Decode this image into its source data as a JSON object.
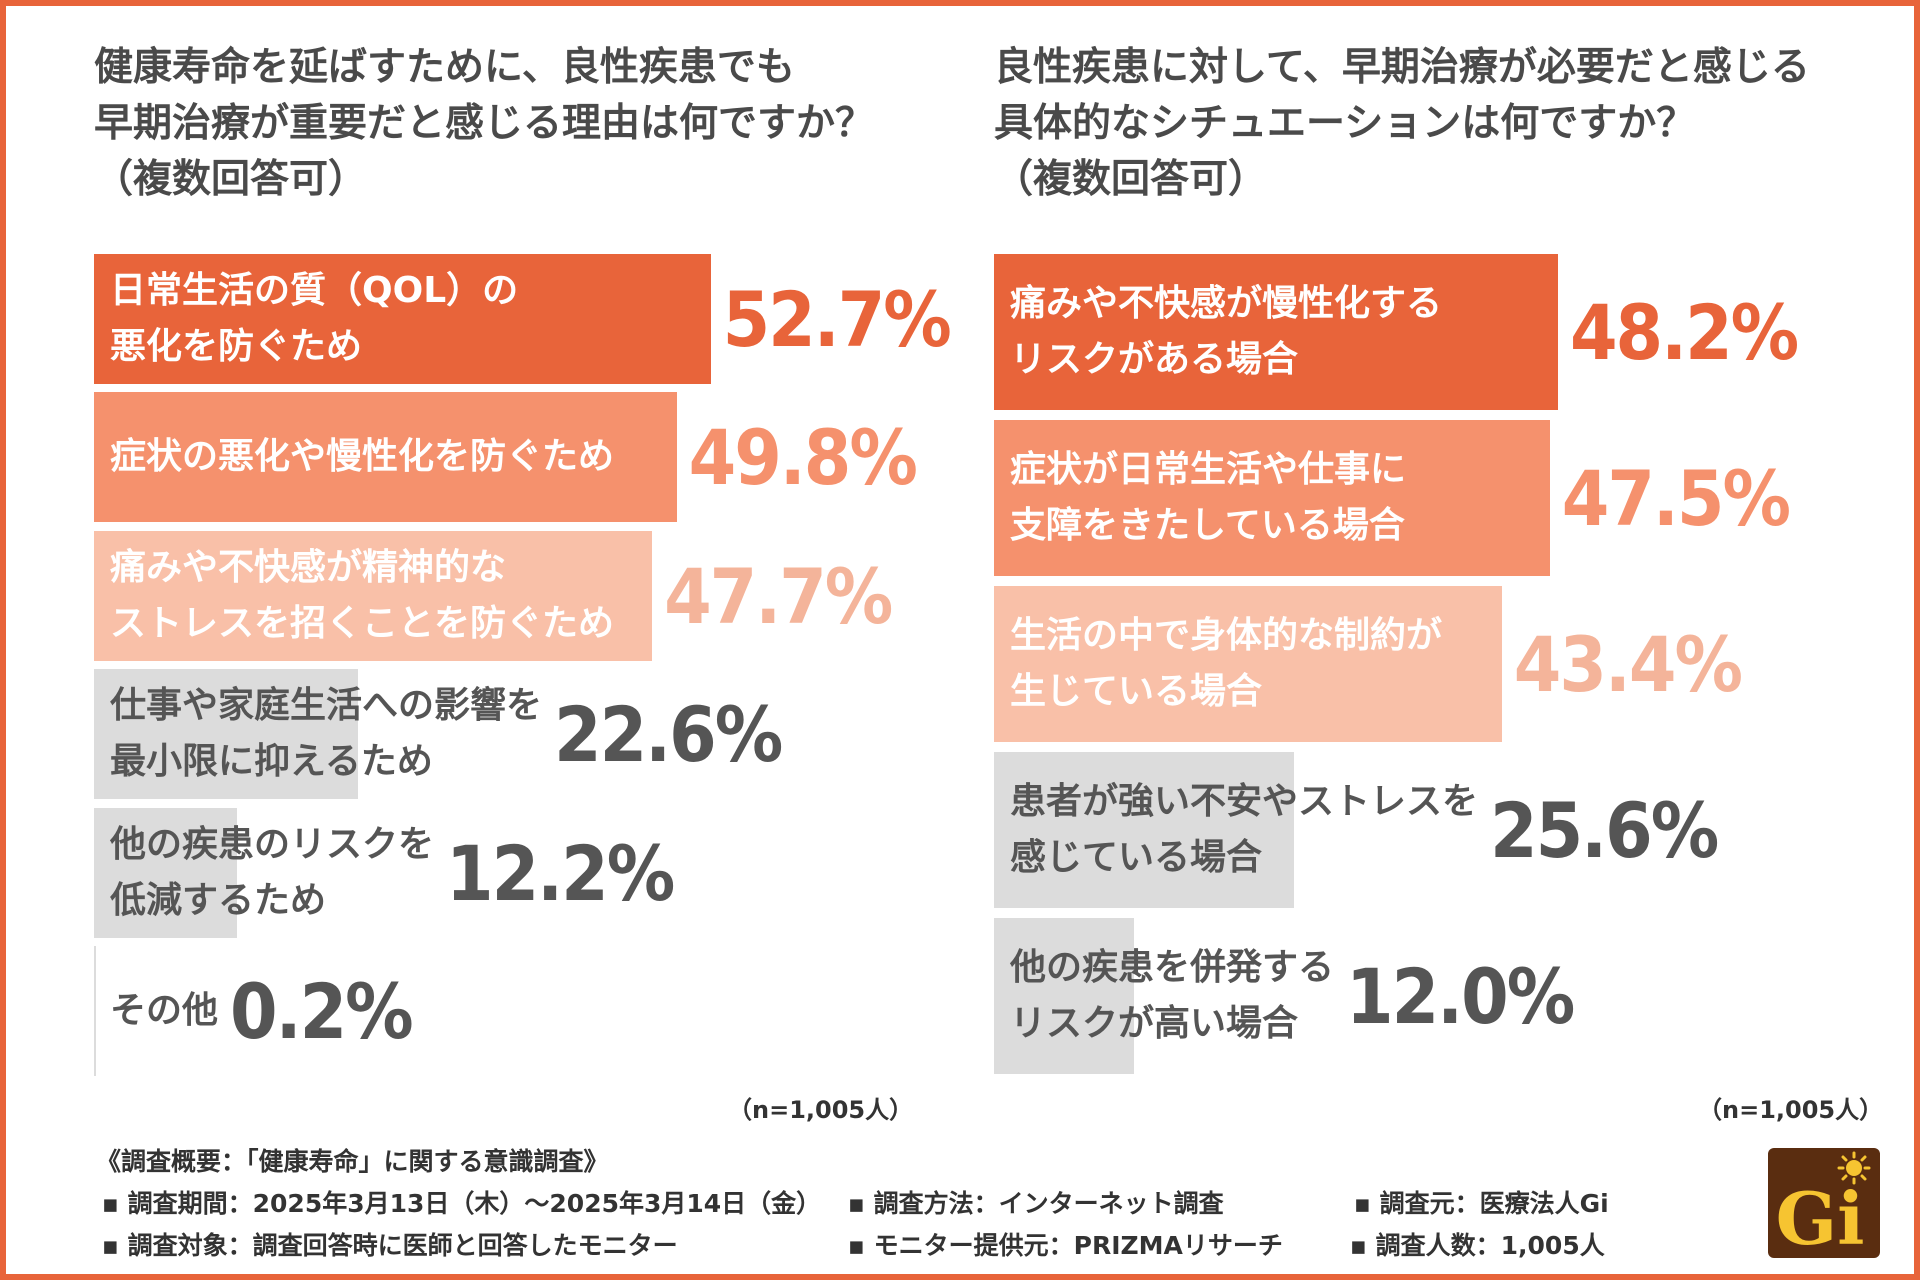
{
  "colors": {
    "frame": "#e8643a",
    "rank1": "#e8643a",
    "rank2": "#f5916d",
    "rank3": "#f9c0a8",
    "rank3_value": "#f4b49a",
    "grey_bar": "#dcdcdc",
    "grey_text": "#555555",
    "white_text": "#ffffff"
  },
  "left": {
    "title_lines": [
      "健康寿命を延ばすために、良性疾患でも",
      "早期治療が重要だと感じる理由は何ですか？",
      "（複数回答可）"
    ],
    "sample": "（n=1,005人）"
  },
  "right": {
    "title_lines": [
      "良性疾患に対して、早期治療が必要だと感じる",
      "具体的なシチュエーションは何ですか？",
      "（複数回答可）"
    ],
    "sample": "（n=1,005人）"
  },
  "chart_data": [
    {
      "type": "bar",
      "orientation": "horizontal",
      "title": "健康寿命を延ばすために、良性疾患でも早期治療が重要だと感じる理由は何ですか？（複数回答可）",
      "unit": "%",
      "xlim": [
        0,
        100
      ],
      "categories": [
        "日常生活の質（QOL）の悪化を防ぐため",
        "症状の悪化や慢性化を防ぐため",
        "痛みや不快感が精神的なストレスを招くことを防ぐため",
        "仕事や家庭生活への影響を最小限に抑えるため",
        "他の疾患のリスクを低減するため",
        "その他"
      ],
      "label_lines": [
        [
          "日常生活の質（QOL）の",
          "悪化を防ぐため"
        ],
        [
          "症状の悪化や慢性化を防ぐため"
        ],
        [
          "痛みや不快感が精神的な",
          "ストレスを招くことを防ぐため"
        ],
        [
          "仕事や家庭生活への影響を",
          "最小限に抑えるため"
        ],
        [
          "他の疾患のリスクを",
          "低減するため"
        ],
        [
          "その他"
        ]
      ],
      "values": [
        52.7,
        49.8,
        47.7,
        22.6,
        12.2,
        0.2
      ],
      "value_labels": [
        "52.7%",
        "49.8%",
        "47.7%",
        "22.6%",
        "12.2%",
        "0.2%"
      ]
    },
    {
      "type": "bar",
      "orientation": "horizontal",
      "title": "良性疾患に対して、早期治療が必要だと感じる具体的なシチュエーションは何ですか？（複数回答可）",
      "unit": "%",
      "xlim": [
        0,
        100
      ],
      "categories": [
        "痛みや不快感が慢性化するリスクがある場合",
        "症状が日常生活や仕事に支障をきたしている場合",
        "生活の中で身体的な制約が生じている場合",
        "患者が強い不安やストレスを感じている場合",
        "他の疾患を併発するリスクが高い場合"
      ],
      "label_lines": [
        [
          "痛みや不快感が慢性化する",
          "リスクがある場合"
        ],
        [
          "症状が日常生活や仕事に",
          "支障をきたしている場合"
        ],
        [
          "生活の中で身体的な制約が",
          "生じている場合"
        ],
        [
          "患者が強い不安やストレスを",
          "感じている場合"
        ],
        [
          "他の疾患を併発する",
          "リスクが高い場合"
        ]
      ],
      "values": [
        48.2,
        47.5,
        43.4,
        25.6,
        12.0
      ],
      "value_labels": [
        "48.2%",
        "47.5%",
        "43.4%",
        "25.6%",
        "12.0%"
      ]
    }
  ],
  "footer": {
    "title": "《調査概要：「健康寿命」に関する意識調査》",
    "items": [
      "▪ 調査期間：2025年3月13日（木）～2025年3月14日（金）",
      "▪ 調査方法：インターネット調査",
      "▪ 調査元：医療法人Gi",
      "▪ 調査対象：調査回答時に医師と回答したモニター",
      "▪ モニター提供元：PRIZMAリサーチ",
      "▪ 調査人数：1,005人"
    ]
  },
  "logo": {
    "text": "Gi",
    "icon": "sun-icon"
  }
}
